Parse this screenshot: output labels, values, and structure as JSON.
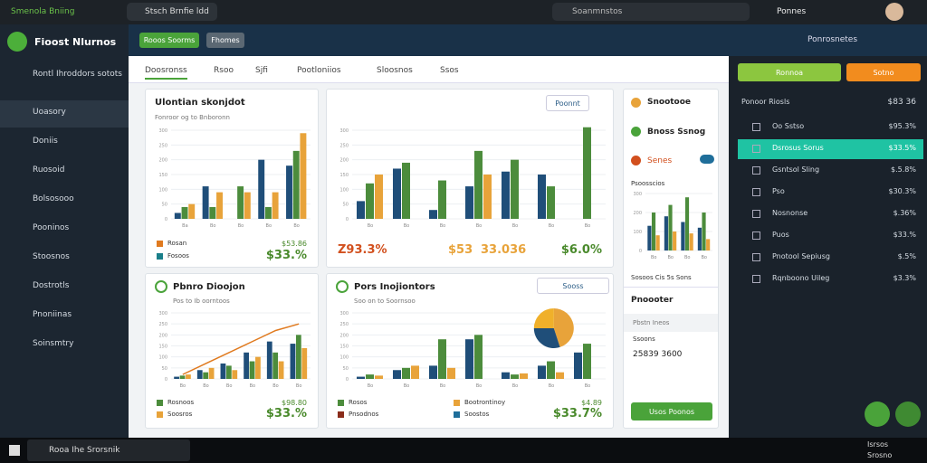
{
  "browser": {
    "tabs": [
      "Smenola Bniing",
      "Stsch Brnfie ldd"
    ],
    "address": "Soanmnstos",
    "profile": "Ponnes"
  },
  "sidebar": {
    "brand": "Fioost Nlurnos",
    "items": [
      "Rontl Ihroddors sotots",
      "Uoasory",
      "Doniis",
      "Ruosoid",
      "Bolsosooo",
      "Pooninos",
      "Stoosnos",
      "Dostrotls",
      "Pnoniinas",
      "Soinsmtry"
    ]
  },
  "header": {
    "buttons": [
      "Rooos Soorms",
      "Fhomes"
    ],
    "right": "Ponrosnetes"
  },
  "tabs": [
    "Doosronss",
    "Rsoo",
    "Sjfi",
    "Pootloniios",
    "Sloosnos",
    "Ssos"
  ],
  "cards": [
    {
      "title": "Ulontian skonjdot",
      "subtitle": "Fonroor og to Bnboronn",
      "legend": [
        "Rosan",
        "Fosoos"
      ],
      "stats": [
        "$53.86",
        "$33.%"
      ]
    },
    {
      "button": "Poonnt",
      "stats": [
        "Z93.3%",
        "$53",
        "33.036",
        "$6.0%"
      ]
    },
    {
      "title": "Pbnro Dioojon",
      "subtitle": "Pos to Ib oorntoos",
      "legend": [
        "Rosnoos",
        "Soosros"
      ],
      "stats": [
        "$98.80",
        "$33.%"
      ]
    },
    {
      "title": "Pors Inojiontors",
      "subtitle": "Soo on to Soornsoo",
      "button": "Sooss",
      "legend": [
        "Rosos",
        "Pnsodnos",
        "Bootrontinoy",
        "Soostos"
      ],
      "stats": [
        "$4.89",
        "$33.7%"
      ]
    }
  ],
  "charts": [
    {
      "type": "bar",
      "ylim": [
        0,
        300
      ],
      "yticks": [
        0,
        50,
        100,
        150,
        200,
        250,
        300
      ],
      "categories": [
        "Ba",
        "Bo",
        "Bo",
        "Bo",
        "Bo"
      ],
      "series": [
        {
          "color": "#1f4e79",
          "values": [
            20,
            110,
            0,
            200,
            180
          ]
        },
        {
          "color": "#4c8c3c",
          "values": [
            40,
            40,
            110,
            40,
            230
          ]
        },
        {
          "color": "#e8a33a",
          "values": [
            50,
            90,
            90,
            90,
            290
          ]
        }
      ]
    },
    {
      "type": "bar",
      "ylim": [
        0,
        300
      ],
      "yticks": [
        0,
        50,
        100,
        150,
        200,
        250,
        300
      ],
      "categories": [
        "Bo",
        "Bo",
        "Bo",
        "Bo",
        "Bo",
        "Bo",
        "Bo"
      ],
      "series": [
        {
          "color": "#1f4e79",
          "values": [
            60,
            170,
            30,
            110,
            160,
            150,
            0
          ]
        },
        {
          "color": "#4c8c3c",
          "values": [
            120,
            190,
            130,
            230,
            200,
            110,
            310
          ]
        },
        {
          "color": "#e8a33a",
          "values": [
            150,
            0,
            0,
            150,
            0,
            0,
            0
          ]
        }
      ]
    },
    {
      "type": "bar",
      "ylim": [
        0,
        300
      ],
      "yticks": [
        0,
        50,
        100,
        150,
        200,
        250,
        300
      ],
      "categories": [
        "Bo",
        "Bo",
        "Bo",
        "Bo",
        "Bo",
        "Bo"
      ],
      "series": [
        {
          "color": "#1f4e79",
          "values": [
            10,
            40,
            70,
            120,
            170,
            160
          ]
        },
        {
          "color": "#4c8c3c",
          "values": [
            15,
            30,
            60,
            80,
            120,
            200
          ]
        },
        {
          "color": "#e8a33a",
          "values": [
            20,
            50,
            40,
            100,
            80,
            140
          ]
        },
        {
          "type": "line",
          "color": "#e07a1f",
          "values": [
            20,
            70,
            120,
            170,
            220,
            250
          ]
        }
      ]
    },
    {
      "type": "bar",
      "ylim": [
        0,
        300
      ],
      "yticks": [
        0,
        50,
        100,
        150,
        200,
        250,
        300
      ],
      "categories": [
        "Bo",
        "Bo",
        "Bo",
        "Bo",
        "Bo",
        "Bo",
        "Bo"
      ],
      "series": [
        {
          "color": "#1f4e79",
          "values": [
            10,
            40,
            60,
            180,
            30,
            60,
            120
          ]
        },
        {
          "color": "#4c8c3c",
          "values": [
            20,
            50,
            180,
            200,
            20,
            80,
            160
          ]
        },
        {
          "color": "#e8a33a",
          "values": [
            15,
            60,
            50,
            0,
            25,
            30,
            0
          ]
        }
      ],
      "pie": {
        "values": [
          45,
          30,
          25
        ],
        "colors": [
          "#e8a33a",
          "#1f4e79",
          "#f0b02a"
        ]
      }
    },
    {
      "type": "bar",
      "ylim": [
        0,
        300
      ],
      "yticks": [
        0,
        100,
        200,
        300
      ],
      "categories": [
        "Bo",
        "Bo",
        "Bo",
        "Bo"
      ],
      "series": [
        {
          "color": "#1f4e79",
          "values": [
            130,
            180,
            150,
            120
          ]
        },
        {
          "color": "#4c8c3c",
          "values": [
            200,
            240,
            280,
            200
          ]
        },
        {
          "color": "#e8a33a",
          "values": [
            80,
            100,
            90,
            60
          ]
        }
      ]
    }
  ],
  "side_panel": {
    "rows": [
      "Snootooe",
      "Bnoss Ssnog",
      "Senes"
    ],
    "chart_title": "Psoosscios",
    "caption": "Sosoos Cis 5s Sons",
    "section": "Pnoooter",
    "sub": "Pbstn Ineos",
    "label": "Ssoons",
    "number": "25839 3600",
    "button": "Usos Poonos"
  },
  "right_panel": {
    "buttons": [
      "Ronnoa",
      "Sotno"
    ],
    "header": [
      "Ponoor Riosls",
      "$83 36"
    ],
    "rows": [
      [
        "Oo Sstso",
        "$95.3%"
      ],
      [
        "Dsrosus Sorus",
        "$33.5%"
      ],
      [
        "Gsntsol Sling",
        "$.5.8%"
      ],
      [
        "Pso",
        "$30.3%"
      ],
      [
        "Nosnonse",
        "$.36%"
      ],
      [
        "Puos",
        "$33.%"
      ],
      [
        "Pnotool Sepiusg",
        "$.5%"
      ],
      [
        "Rqnboono Uileg",
        "$3.3%"
      ]
    ]
  },
  "taskbar": {
    "search": "Rooa Ihe Srorsnik",
    "time": "Isrsos",
    "date": "Srosno"
  }
}
